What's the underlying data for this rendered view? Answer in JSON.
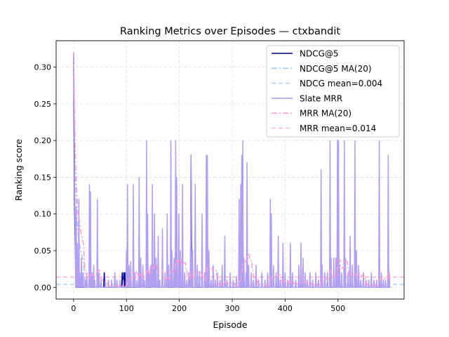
{
  "chart_data": {
    "type": "line",
    "title": "Ranking Metrics over Episodes — ctxbandit",
    "xlabel": "Episode",
    "ylabel": "Ranking score",
    "xlim": [
      -33,
      625
    ],
    "ylim": [
      -0.016,
      0.336
    ],
    "xticks": [
      0,
      100,
      200,
      300,
      400,
      500
    ],
    "yticks": [
      0.0,
      0.05,
      0.1,
      0.15,
      0.2,
      0.25,
      0.3
    ],
    "ytick_labels": [
      "0.00",
      "0.05",
      "0.10",
      "0.15",
      "0.20",
      "0.25",
      "0.30"
    ],
    "grid": true,
    "legend_position": "top-right",
    "n_episodes": 600,
    "series": [
      {
        "name": "NDCG@5",
        "color": "#00008b",
        "style": "solid",
        "spikes": [
          [
            0,
            0.32
          ],
          [
            1,
            0.2
          ],
          [
            2,
            0.11
          ],
          [
            3,
            0.06
          ],
          [
            4,
            0.03
          ],
          [
            58,
            0.02
          ],
          [
            92,
            0.02
          ],
          [
            95,
            0.02
          ],
          [
            97,
            0.02
          ],
          [
            222,
            0.18
          ],
          [
            223,
            0.08
          ]
        ]
      },
      {
        "name": "NDCG@5 MA(20)",
        "color": "#9ec9ef",
        "style": "dashdot",
        "ma_of": "NDCG@5",
        "window": 20
      },
      {
        "name": "NDCG mean=0.004",
        "color": "#aed3f2",
        "style": "dashed",
        "const": 0.004
      },
      {
        "name": "Slate MRR",
        "color": "#b39ff0",
        "style": "solid",
        "spikes": [
          [
            0,
            0.32
          ],
          [
            1,
            0.25
          ],
          [
            2,
            0.15
          ],
          [
            3,
            0.08
          ],
          [
            5,
            0.11
          ],
          [
            7,
            0.06
          ],
          [
            10,
            0.12
          ],
          [
            12,
            0.02
          ],
          [
            15,
            0.04
          ],
          [
            18,
            0.02
          ],
          [
            22,
            0.01
          ],
          [
            25,
            0.02
          ],
          [
            30,
            0.14
          ],
          [
            32,
            0.13
          ],
          [
            35,
            0.02
          ],
          [
            38,
            0.03
          ],
          [
            40,
            0.01
          ],
          [
            45,
            0.12
          ],
          [
            48,
            0.02
          ],
          [
            52,
            0.01
          ],
          [
            60,
            0.01
          ],
          [
            66,
            0.01
          ],
          [
            72,
            0.01
          ],
          [
            78,
            0.02
          ],
          [
            82,
            0.01
          ],
          [
            88,
            0.01
          ],
          [
            94,
            0.01
          ],
          [
            100,
            0.05
          ],
          [
            102,
            0.14
          ],
          [
            105,
            0.03
          ],
          [
            108,
            0.035
          ],
          [
            113,
            0.14
          ],
          [
            116,
            0.02
          ],
          [
            120,
            0.01
          ],
          [
            124,
            0.15
          ],
          [
            127,
            0.04
          ],
          [
            131,
            0.03
          ],
          [
            134,
            0.01
          ],
          [
            138,
            0.2
          ],
          [
            140,
            0.1
          ],
          [
            143,
            0.02
          ],
          [
            146,
            0.03
          ],
          [
            149,
            0.14
          ],
          [
            151,
            0.03
          ],
          [
            153,
            0.1
          ],
          [
            156,
            0.04
          ],
          [
            160,
            0.07
          ],
          [
            163,
            0.01
          ],
          [
            168,
            0.08
          ],
          [
            173,
            0.02
          ],
          [
            177,
            0.1
          ],
          [
            180,
            0.03
          ],
          [
            184,
            0.2
          ],
          [
            186,
            0.05
          ],
          [
            190,
            0.04
          ],
          [
            193,
            0.2
          ],
          [
            195,
            0.15
          ],
          [
            199,
            0.1
          ],
          [
            202,
            0.05
          ],
          [
            206,
            0.14
          ],
          [
            210,
            0.02
          ],
          [
            214,
            0.01
          ],
          [
            218,
            0.02
          ],
          [
            222,
            0.18
          ],
          [
            225,
            0.05
          ],
          [
            230,
            0.14
          ],
          [
            234,
            0.03
          ],
          [
            238,
            0.02
          ],
          [
            243,
            0.1
          ],
          [
            248,
            0.02
          ],
          [
            251,
            0.18
          ],
          [
            253,
            0.18
          ],
          [
            256,
            0.05
          ],
          [
            260,
            0.01
          ],
          [
            264,
            0.03
          ],
          [
            268,
            0.01
          ],
          [
            272,
            0.02
          ],
          [
            277,
            0.01
          ],
          [
            281,
            0.03
          ],
          [
            286,
            0.07
          ],
          [
            290,
            0.01
          ],
          [
            296,
            0.02
          ],
          [
            302,
            0.01
          ],
          [
            308,
            0.015
          ],
          [
            313,
            0.12
          ],
          [
            316,
            0.14
          ],
          [
            318,
            0.18
          ],
          [
            320,
            0.2
          ],
          [
            322,
            0.04
          ],
          [
            326,
            0.02
          ],
          [
            328,
            0.17
          ],
          [
            331,
            0.03
          ],
          [
            336,
            0.02
          ],
          [
            340,
            0.01
          ],
          [
            345,
            0.03
          ],
          [
            350,
            0.01
          ],
          [
            356,
            0.02
          ],
          [
            362,
            0.01
          ],
          [
            367,
            0.02
          ],
          [
            372,
            0.12
          ],
          [
            374,
            0.1
          ],
          [
            378,
            0.03
          ],
          [
            383,
            0.02
          ],
          [
            387,
            0.07
          ],
          [
            391,
            0.01
          ],
          [
            396,
            0.06
          ],
          [
            400,
            0.02
          ],
          [
            405,
            0.01
          ],
          [
            410,
            0.06
          ],
          [
            414,
            0.02
          ],
          [
            420,
            0.01
          ],
          [
            426,
            0.03
          ],
          [
            430,
            0.06
          ],
          [
            434,
            0.04
          ],
          [
            438,
            0.02
          ],
          [
            442,
            0.01
          ],
          [
            447,
            0.02
          ],
          [
            452,
            0.01
          ],
          [
            458,
            0.02
          ],
          [
            463,
            0.01
          ],
          [
            468,
            0.16
          ],
          [
            470,
            0.03
          ],
          [
            475,
            0.02
          ],
          [
            480,
            0.02
          ],
          [
            485,
            0.2
          ],
          [
            487,
            0.04
          ],
          [
            492,
            0.04
          ],
          [
            496,
            0.04
          ],
          [
            499,
            0.2
          ],
          [
            501,
            0.2
          ],
          [
            503,
            0.03
          ],
          [
            507,
            0.02
          ],
          [
            512,
            0.2
          ],
          [
            514,
            0.04
          ],
          [
            519,
            0.02
          ],
          [
            523,
            0.07
          ],
          [
            527,
            0.03
          ],
          [
            532,
            0.2
          ],
          [
            535,
            0.05
          ],
          [
            539,
            0.03
          ],
          [
            543,
            0.01
          ],
          [
            548,
            0.02
          ],
          [
            553,
            0.01
          ],
          [
            558,
            0.01
          ],
          [
            563,
            0.02
          ],
          [
            568,
            0.01
          ],
          [
            573,
            0.01
          ],
          [
            578,
            0.2
          ],
          [
            582,
            0.02
          ],
          [
            586,
            0.01
          ],
          [
            590,
            0.01
          ],
          [
            595,
            0.18
          ],
          [
            597,
            0.02
          ]
        ]
      },
      {
        "name": "MRR MA(20)",
        "color": "#ff9ecf",
        "style": "dashdot",
        "ma_of": "Slate MRR",
        "window": 20
      },
      {
        "name": "MRR mean=0.014",
        "color": "#ffb0d4",
        "style": "dashed",
        "const": 0.014
      }
    ]
  }
}
